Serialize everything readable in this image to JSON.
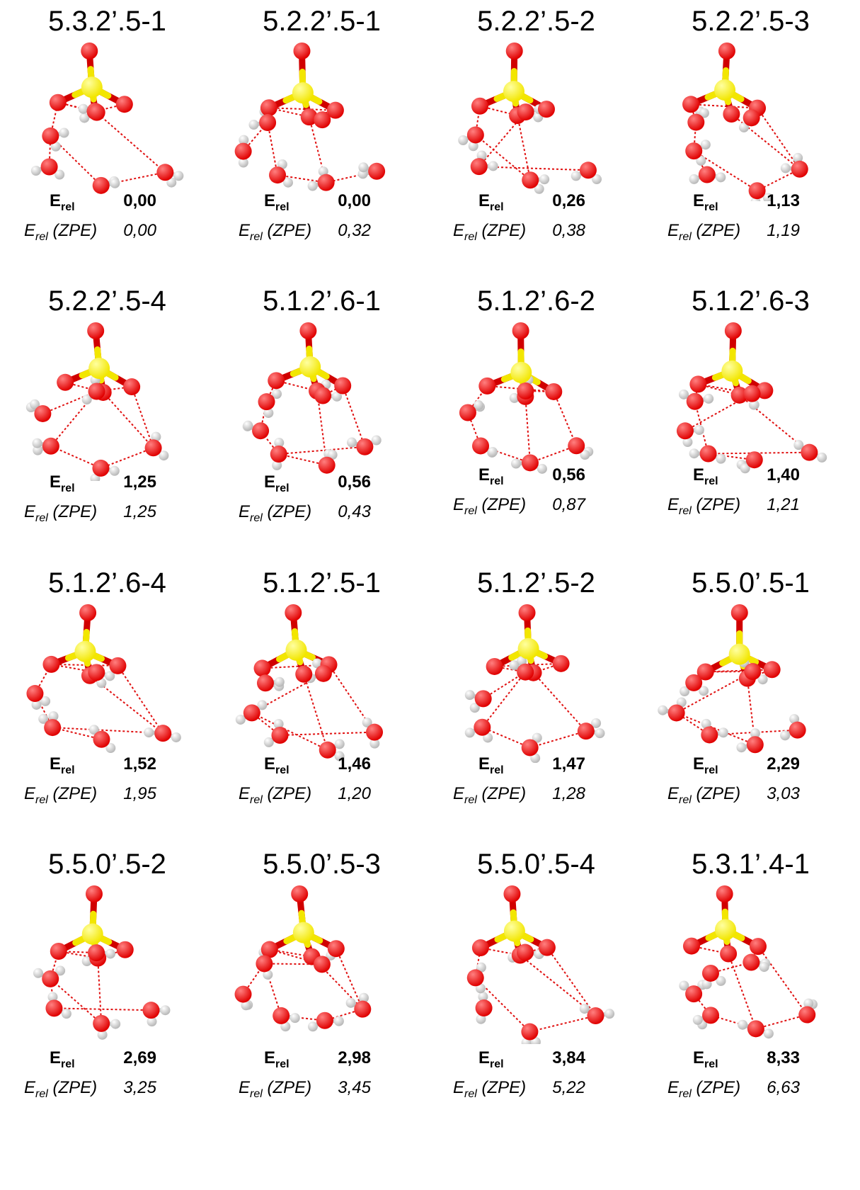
{
  "energy_label": "E",
  "energy_sub": "rel",
  "zpe_label": "E",
  "zpe_sub": "rel",
  "zpe_suffix": " (ZPE)",
  "colors": {
    "oxygen": "#e00000",
    "sulfur": "#f2e600",
    "hydrogen": "#f2f2f2",
    "hbond": "#e01010"
  },
  "structures": [
    {
      "name": "5.3.2’.5-1",
      "e_rel": "0,00",
      "e_rel_zpe": "0,00"
    },
    {
      "name": "5.2.2’.5-1",
      "e_rel": "0,00",
      "e_rel_zpe": "0,32"
    },
    {
      "name": "5.2.2’.5-2",
      "e_rel": "0,26",
      "e_rel_zpe": "0,38"
    },
    {
      "name": "5.2.2’.5-3",
      "e_rel": "1,13",
      "e_rel_zpe": "1,19"
    },
    {
      "name": "5.2.2’.5-4",
      "e_rel": "1,25",
      "e_rel_zpe": "1,25"
    },
    {
      "name": "5.1.2’.6-1",
      "e_rel": "0,56",
      "e_rel_zpe": "0,43"
    },
    {
      "name": "5.1.2’.6-2",
      "e_rel": "0,56",
      "e_rel_zpe": "0,87"
    },
    {
      "name": "5.1.2’.6-3",
      "e_rel": "1,40",
      "e_rel_zpe": "1,21"
    },
    {
      "name": "5.1.2’.6-4",
      "e_rel": "1,52",
      "e_rel_zpe": "1,95"
    },
    {
      "name": "5.1.2’.5-1",
      "e_rel": "1,46",
      "e_rel_zpe": "1,20"
    },
    {
      "name": "5.1.2’.5-2",
      "e_rel": "1,47",
      "e_rel_zpe": "1,28"
    },
    {
      "name": "5.5.0’.5-1",
      "e_rel": "2,29",
      "e_rel_zpe": "3,03"
    },
    {
      "name": "5.5.0’.5-2",
      "e_rel": "2,69",
      "e_rel_zpe": "3,25"
    },
    {
      "name": "5.5.0’.5-3",
      "e_rel": "2,98",
      "e_rel_zpe": "3,45"
    },
    {
      "name": "5.5.0’.5-4",
      "e_rel": "3,84",
      "e_rel_zpe": "5,22"
    },
    {
      "name": "5.3.1’.4-1",
      "e_rel": "8,33",
      "e_rel_zpe": "6,63"
    }
  ]
}
